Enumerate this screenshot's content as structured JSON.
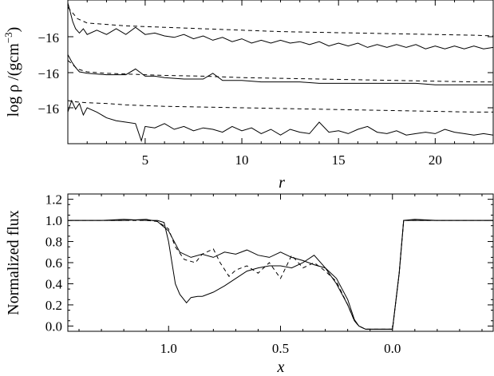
{
  "chart_data": [
    {
      "type": "line",
      "panel": "top",
      "xlabel": "r",
      "ylabel": "log ρ /(gcm",
      "ylabel_unit_exponent": "−3",
      "ylabel_close": ")",
      "xlim": [
        1,
        23
      ],
      "x_ticks": [
        5,
        10,
        15,
        20
      ],
      "x_tick_labels": [
        "5",
        "10",
        "15",
        "20"
      ],
      "y_tick_labels": [
        "−16",
        "−16",
        "−16"
      ],
      "grid": false,
      "legend": "none",
      "series": [
        {
          "style": "solid",
          "x": [
            1,
            1.1,
            1.25,
            1.4,
            1.6,
            1.8,
            2.0,
            2.5,
            3.0,
            3.5,
            4.0,
            4.5,
            5.0,
            5.5,
            6.0,
            6.5,
            7.0,
            7.5,
            8.0,
            8.5,
            9.0,
            9.5,
            10.0,
            10.5,
            11.0,
            11.5,
            12.0,
            12.5,
            13.0,
            13.5,
            14.0,
            14.5,
            15.0,
            15.5,
            16.0,
            16.5,
            17.0,
            17.5,
            18.0,
            18.5,
            19.0,
            19.5,
            20.0,
            20.5,
            21.0,
            21.5,
            22.0,
            22.5,
            23.0
          ],
          "y": [
            0.98,
            0.93,
            0.85,
            0.8,
            0.77,
            0.8,
            0.76,
            0.79,
            0.76,
            0.8,
            0.76,
            0.81,
            0.76,
            0.77,
            0.75,
            0.74,
            0.76,
            0.73,
            0.75,
            0.72,
            0.74,
            0.71,
            0.73,
            0.7,
            0.72,
            0.7,
            0.72,
            0.7,
            0.71,
            0.69,
            0.71,
            0.68,
            0.7,
            0.68,
            0.7,
            0.67,
            0.69,
            0.67,
            0.69,
            0.67,
            0.69,
            0.66,
            0.68,
            0.66,
            0.68,
            0.66,
            0.68,
            0.66,
            0.67
          ]
        },
        {
          "style": "dashed",
          "x": [
            1,
            1.5,
            2,
            3,
            4,
            5,
            6,
            8,
            10,
            12,
            14,
            16,
            18,
            20,
            22,
            23
          ],
          "y": [
            0.95,
            0.87,
            0.84,
            0.83,
            0.82,
            0.815,
            0.81,
            0.8,
            0.79,
            0.78,
            0.775,
            0.77,
            0.765,
            0.76,
            0.755,
            0.75
          ]
        },
        {
          "style": "solid",
          "x": [
            1,
            1.2,
            1.4,
            1.6,
            2.0,
            3.0,
            4.0,
            4.5,
            5.0,
            5.5,
            6.0,
            7.0,
            8.0,
            8.5,
            9.0,
            9.5,
            10.0,
            11.0,
            12.0,
            13.0,
            14.0,
            15.0,
            16.0,
            17.0,
            18.0,
            19.0,
            20.0,
            21.0,
            22.0,
            23.0
          ],
          "y": [
            0.62,
            0.57,
            0.53,
            0.5,
            0.49,
            0.48,
            0.48,
            0.52,
            0.47,
            0.47,
            0.46,
            0.45,
            0.45,
            0.49,
            0.44,
            0.44,
            0.44,
            0.43,
            0.43,
            0.43,
            0.42,
            0.42,
            0.42,
            0.42,
            0.42,
            0.42,
            0.41,
            0.41,
            0.41,
            0.41
          ]
        },
        {
          "style": "dashed",
          "x": [
            1,
            1.5,
            2,
            3,
            4,
            5,
            6,
            8,
            10,
            12,
            14,
            16,
            18,
            20,
            22,
            23
          ],
          "y": [
            0.58,
            0.52,
            0.5,
            0.49,
            0.485,
            0.48,
            0.475,
            0.47,
            0.46,
            0.455,
            0.45,
            0.445,
            0.44,
            0.435,
            0.43,
            0.43
          ]
        },
        {
          "style": "solid",
          "x": [
            1,
            1.2,
            1.4,
            1.6,
            1.8,
            2.0,
            2.5,
            3.0,
            3.5,
            4.0,
            4.5,
            4.8,
            5.0,
            5.5,
            6.0,
            6.5,
            7.0,
            7.5,
            8.0,
            8.5,
            9.0,
            9.5,
            10.0,
            10.5,
            11.0,
            11.5,
            12.0,
            12.5,
            13.0,
            13.5,
            14.0,
            14.5,
            15.0,
            15.5,
            16.0,
            16.5,
            17.0,
            17.5,
            18.0,
            18.5,
            19.0,
            19.5,
            20.0,
            20.5,
            21.0,
            21.5,
            22.0,
            22.5,
            23.0
          ],
          "y": [
            0.22,
            0.3,
            0.24,
            0.28,
            0.2,
            0.25,
            0.22,
            0.18,
            0.16,
            0.15,
            0.14,
            0.02,
            0.12,
            0.11,
            0.14,
            0.1,
            0.12,
            0.09,
            0.11,
            0.1,
            0.08,
            0.12,
            0.09,
            0.11,
            0.07,
            0.1,
            0.06,
            0.1,
            0.08,
            0.07,
            0.15,
            0.08,
            0.09,
            0.07,
            0.1,
            0.12,
            0.08,
            0.07,
            0.09,
            0.06,
            0.07,
            0.08,
            0.07,
            0.1,
            0.08,
            0.07,
            0.06,
            0.07,
            0.06
          ]
        },
        {
          "style": "dashed",
          "x": [
            1,
            1.5,
            2,
            3,
            4,
            5,
            6,
            8,
            10,
            12,
            14,
            16,
            18,
            20,
            22,
            23
          ],
          "y": [
            0.3,
            0.29,
            0.285,
            0.28,
            0.27,
            0.265,
            0.26,
            0.255,
            0.25,
            0.245,
            0.24,
            0.235,
            0.23,
            0.225,
            0.22,
            0.22
          ]
        }
      ]
    },
    {
      "type": "line",
      "panel": "bottom",
      "xlabel": "x",
      "ylabel": "Normalized flux",
      "xlim": [
        1.45,
        -0.45
      ],
      "ylim": [
        -0.05,
        1.25
      ],
      "x_ticks": [
        1.0,
        0.5,
        0.0
      ],
      "x_tick_labels": [
        "1.0",
        "0.5",
        "0.0"
      ],
      "y_ticks": [
        0.0,
        0.2,
        0.4,
        0.6,
        0.8,
        1.0,
        1.2
      ],
      "y_tick_labels": [
        "0.0",
        "0.2",
        "0.4",
        "0.6",
        "0.8",
        "1.0",
        "1.2"
      ],
      "grid": false,
      "legend": "none",
      "series": [
        {
          "style": "solid",
          "x": [
            1.45,
            1.3,
            1.2,
            1.1,
            1.05,
            1.02,
            1.0,
            0.97,
            0.95,
            0.92,
            0.9,
            0.87,
            0.85,
            0.8,
            0.75,
            0.7,
            0.65,
            0.6,
            0.55,
            0.5,
            0.45,
            0.4,
            0.35,
            0.3,
            0.25,
            0.2,
            0.17,
            0.15,
            0.12,
            0.1,
            0.05,
            0.0,
            -0.03,
            -0.05,
            -0.1,
            -0.2,
            -0.3,
            -0.45
          ],
          "y": [
            1.0,
            1.0,
            1.01,
            1.0,
            1.0,
            0.98,
            0.8,
            0.4,
            0.3,
            0.22,
            0.27,
            0.28,
            0.28,
            0.32,
            0.38,
            0.45,
            0.52,
            0.55,
            0.57,
            0.57,
            0.55,
            0.6,
            0.67,
            0.55,
            0.4,
            0.2,
            0.05,
            0.0,
            -0.03,
            -0.03,
            -0.03,
            -0.03,
            0.5,
            1.0,
            1.0,
            1.0,
            1.0,
            1.0
          ]
        },
        {
          "style": "solid",
          "x": [
            1.45,
            1.3,
            1.2,
            1.1,
            1.05,
            1.0,
            0.97,
            0.95,
            0.9,
            0.85,
            0.8,
            0.75,
            0.7,
            0.65,
            0.6,
            0.55,
            0.5,
            0.45,
            0.4,
            0.35,
            0.3,
            0.25,
            0.2,
            0.17,
            0.15,
            0.12,
            0.1,
            0.05,
            0.0,
            -0.03,
            -0.05,
            -0.1,
            -0.2,
            -0.3,
            -0.45
          ],
          "y": [
            1.0,
            1.0,
            1.0,
            1.01,
            0.99,
            0.9,
            0.78,
            0.7,
            0.65,
            0.68,
            0.65,
            0.7,
            0.68,
            0.72,
            0.67,
            0.65,
            0.7,
            0.65,
            0.62,
            0.58,
            0.55,
            0.45,
            0.25,
            0.06,
            0.0,
            -0.03,
            -0.03,
            -0.03,
            -0.03,
            0.5,
            1.0,
            1.01,
            1.0,
            1.0,
            1.0
          ]
        },
        {
          "style": "dashed",
          "x": [
            1.45,
            1.3,
            1.2,
            1.1,
            1.05,
            1.0,
            0.97,
            0.93,
            0.88,
            0.85,
            0.8,
            0.77,
            0.73,
            0.7,
            0.65,
            0.6,
            0.55,
            0.5,
            0.45,
            0.4,
            0.35,
            0.3,
            0.25,
            0.2,
            0.17,
            0.15,
            0.12,
            0.1,
            0.05,
            0.0,
            -0.03,
            -0.05,
            -0.1,
            -0.2,
            -0.3,
            -0.45
          ],
          "y": [
            1.0,
            1.0,
            1.0,
            1.0,
            0.99,
            0.92,
            0.75,
            0.63,
            0.6,
            0.68,
            0.73,
            0.6,
            0.47,
            0.53,
            0.57,
            0.5,
            0.6,
            0.45,
            0.67,
            0.55,
            0.6,
            0.52,
            0.42,
            0.2,
            0.05,
            0.0,
            -0.03,
            -0.03,
            -0.03,
            -0.03,
            0.5,
            1.0,
            1.0,
            1.0,
            1.0,
            1.0
          ]
        }
      ]
    }
  ]
}
